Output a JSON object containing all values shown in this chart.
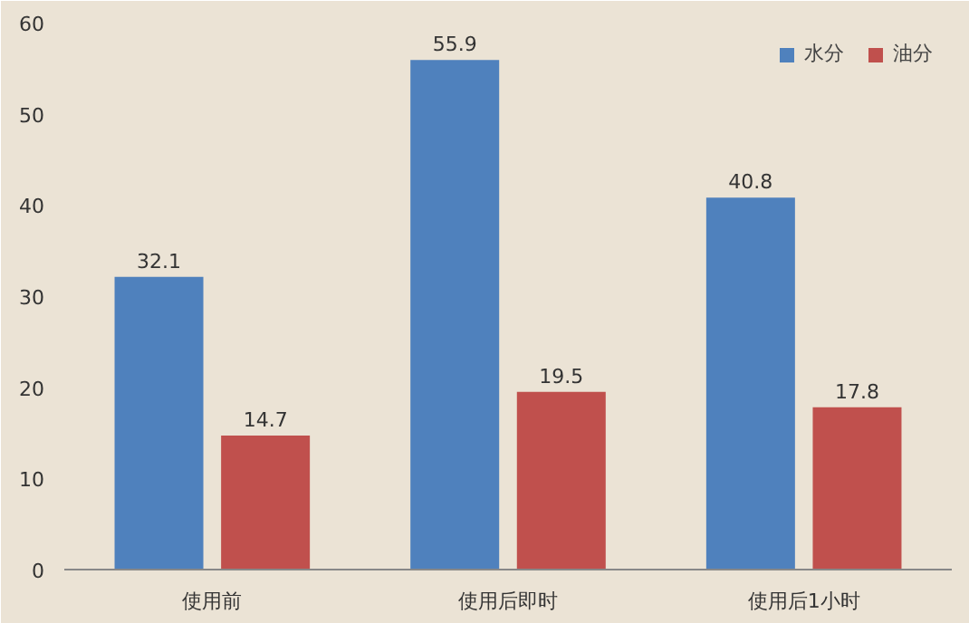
{
  "chart_data": {
    "type": "bar",
    "categories": [
      "使用前",
      "使用后即时",
      "使用后1小时"
    ],
    "series": [
      {
        "name": "水分",
        "color": "#4f81bd",
        "values": [
          32.1,
          55.9,
          40.8
        ]
      },
      {
        "name": "油分",
        "color": "#c0504d",
        "values": [
          14.7,
          19.5,
          17.8
        ]
      }
    ],
    "ylim": [
      0,
      60
    ],
    "yticks": [
      0,
      10,
      20,
      30,
      40,
      50,
      60
    ],
    "grid": false,
    "legend": "top right",
    "data_labels": true
  }
}
